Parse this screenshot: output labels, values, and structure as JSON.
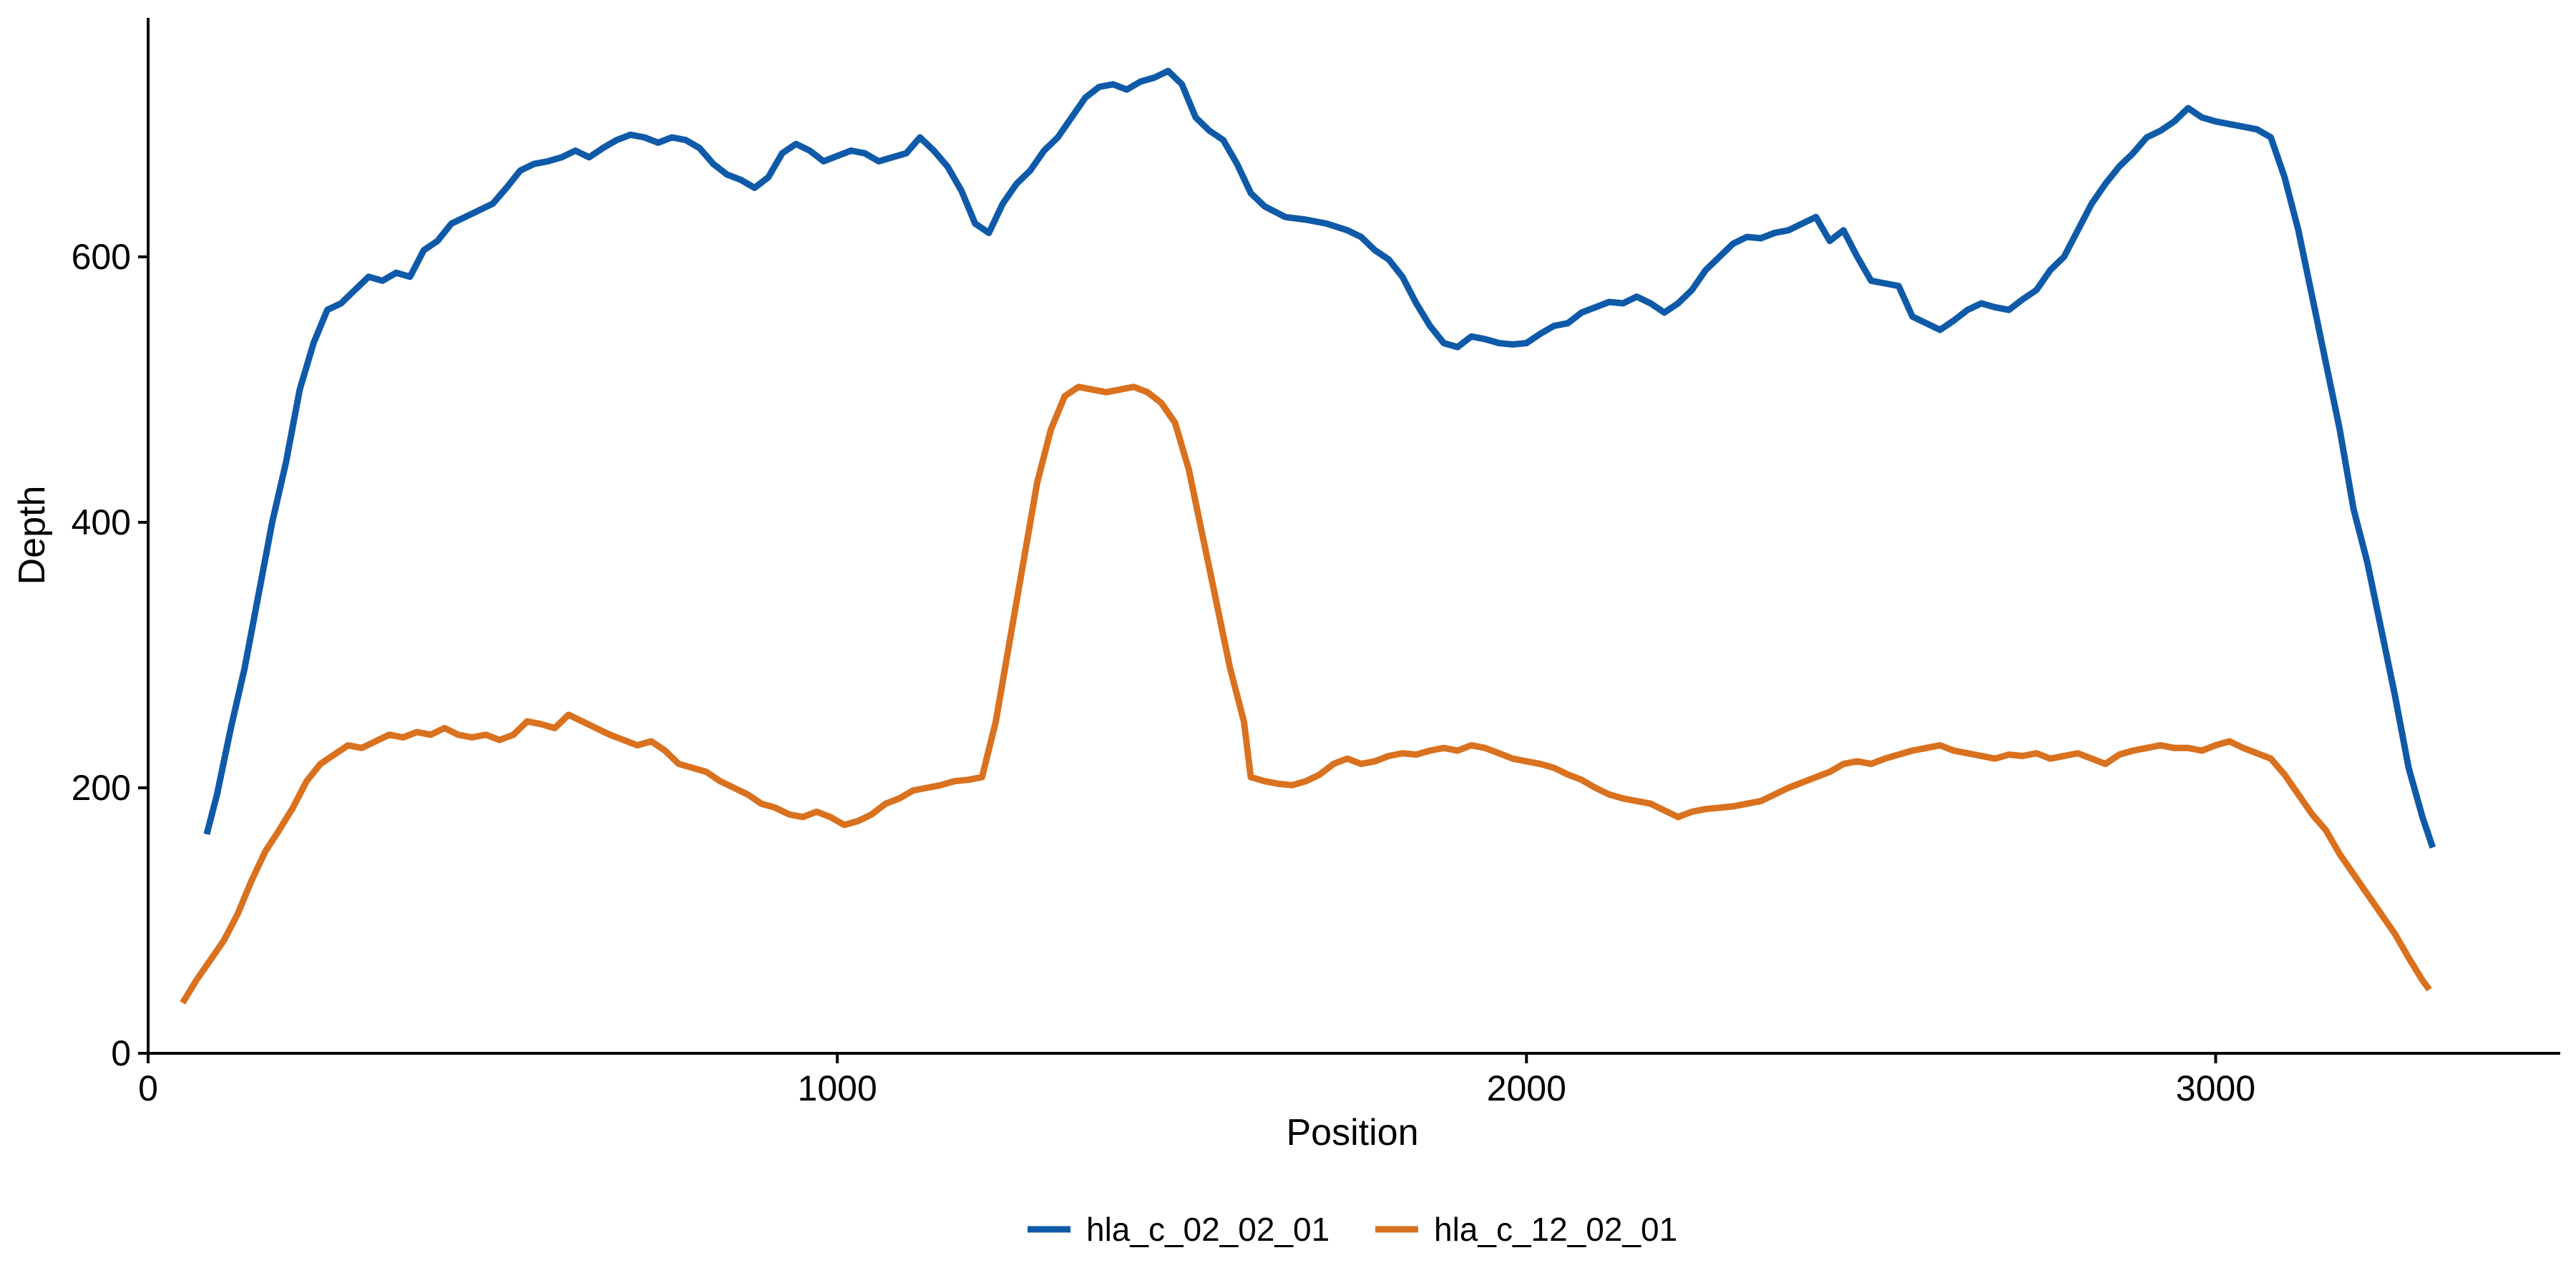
{
  "chart_data": {
    "type": "line",
    "title": "",
    "xlabel": "Position",
    "ylabel": "Depth",
    "xlim": [
      0,
      3500
    ],
    "ylim": [
      0,
      780
    ],
    "x_ticks": [
      0,
      1000,
      2000,
      3000
    ],
    "y_ticks": [
      0,
      200,
      400,
      600
    ],
    "x_tick_labels": [
      "0",
      "1000",
      "2000",
      "3000"
    ],
    "y_tick_labels": [
      "0",
      "200",
      "400",
      "600"
    ],
    "grid": false,
    "legend": {
      "position": "bottom",
      "entries": [
        "hla_c_02_02_01",
        "hla_c_12_02_01"
      ]
    },
    "series": [
      {
        "name": "hla_c_02_02_01",
        "color": "#0f5aa8",
        "points": [
          [
            85,
            165
          ],
          [
            100,
            195
          ],
          [
            120,
            245
          ],
          [
            140,
            290
          ],
          [
            160,
            345
          ],
          [
            180,
            400
          ],
          [
            200,
            445
          ],
          [
            220,
            500
          ],
          [
            240,
            535
          ],
          [
            260,
            560
          ],
          [
            280,
            565
          ],
          [
            300,
            575
          ],
          [
            320,
            585
          ],
          [
            340,
            582
          ],
          [
            360,
            588
          ],
          [
            380,
            585
          ],
          [
            400,
            605
          ],
          [
            420,
            612
          ],
          [
            440,
            625
          ],
          [
            460,
            630
          ],
          [
            480,
            635
          ],
          [
            500,
            640
          ],
          [
            520,
            652
          ],
          [
            540,
            665
          ],
          [
            560,
            670
          ],
          [
            580,
            672
          ],
          [
            600,
            675
          ],
          [
            620,
            680
          ],
          [
            640,
            675
          ],
          [
            660,
            682
          ],
          [
            680,
            688
          ],
          [
            700,
            692
          ],
          [
            720,
            690
          ],
          [
            740,
            686
          ],
          [
            760,
            690
          ],
          [
            780,
            688
          ],
          [
            800,
            682
          ],
          [
            820,
            670
          ],
          [
            840,
            662
          ],
          [
            860,
            658
          ],
          [
            880,
            652
          ],
          [
            900,
            660
          ],
          [
            920,
            678
          ],
          [
            940,
            685
          ],
          [
            960,
            680
          ],
          [
            980,
            672
          ],
          [
            1000,
            676
          ],
          [
            1020,
            680
          ],
          [
            1040,
            678
          ],
          [
            1060,
            672
          ],
          [
            1080,
            675
          ],
          [
            1100,
            678
          ],
          [
            1120,
            690
          ],
          [
            1140,
            680
          ],
          [
            1160,
            668
          ],
          [
            1180,
            650
          ],
          [
            1200,
            625
          ],
          [
            1220,
            618
          ],
          [
            1240,
            640
          ],
          [
            1260,
            655
          ],
          [
            1280,
            665
          ],
          [
            1300,
            680
          ],
          [
            1320,
            690
          ],
          [
            1340,
            705
          ],
          [
            1360,
            720
          ],
          [
            1380,
            728
          ],
          [
            1400,
            730
          ],
          [
            1420,
            726
          ],
          [
            1440,
            732
          ],
          [
            1460,
            735
          ],
          [
            1480,
            740
          ],
          [
            1500,
            730
          ],
          [
            1520,
            705
          ],
          [
            1540,
            695
          ],
          [
            1560,
            688
          ],
          [
            1580,
            670
          ],
          [
            1600,
            648
          ],
          [
            1620,
            638
          ],
          [
            1650,
            630
          ],
          [
            1680,
            628
          ],
          [
            1710,
            625
          ],
          [
            1740,
            620
          ],
          [
            1760,
            615
          ],
          [
            1780,
            605
          ],
          [
            1800,
            598
          ],
          [
            1820,
            585
          ],
          [
            1840,
            565
          ],
          [
            1860,
            548
          ],
          [
            1880,
            535
          ],
          [
            1900,
            532
          ],
          [
            1920,
            540
          ],
          [
            1940,
            538
          ],
          [
            1960,
            535
          ],
          [
            1980,
            534
          ],
          [
            2000,
            535
          ],
          [
            2020,
            542
          ],
          [
            2040,
            548
          ],
          [
            2060,
            550
          ],
          [
            2080,
            558
          ],
          [
            2100,
            562
          ],
          [
            2120,
            566
          ],
          [
            2140,
            565
          ],
          [
            2160,
            570
          ],
          [
            2180,
            565
          ],
          [
            2200,
            558
          ],
          [
            2220,
            565
          ],
          [
            2240,
            575
          ],
          [
            2260,
            590
          ],
          [
            2280,
            600
          ],
          [
            2300,
            610
          ],
          [
            2320,
            615
          ],
          [
            2340,
            614
          ],
          [
            2360,
            618
          ],
          [
            2380,
            620
          ],
          [
            2400,
            625
          ],
          [
            2420,
            630
          ],
          [
            2440,
            612
          ],
          [
            2460,
            620
          ],
          [
            2480,
            600
          ],
          [
            2500,
            582
          ],
          [
            2520,
            580
          ],
          [
            2540,
            578
          ],
          [
            2560,
            555
          ],
          [
            2580,
            550
          ],
          [
            2600,
            545
          ],
          [
            2620,
            552
          ],
          [
            2640,
            560
          ],
          [
            2660,
            565
          ],
          [
            2680,
            562
          ],
          [
            2700,
            560
          ],
          [
            2720,
            568
          ],
          [
            2740,
            575
          ],
          [
            2760,
            590
          ],
          [
            2780,
            600
          ],
          [
            2800,
            620
          ],
          [
            2820,
            640
          ],
          [
            2840,
            655
          ],
          [
            2860,
            668
          ],
          [
            2880,
            678
          ],
          [
            2900,
            690
          ],
          [
            2920,
            695
          ],
          [
            2940,
            702
          ],
          [
            2960,
            712
          ],
          [
            2980,
            705
          ],
          [
            3000,
            702
          ],
          [
            3020,
            700
          ],
          [
            3040,
            698
          ],
          [
            3060,
            696
          ],
          [
            3080,
            690
          ],
          [
            3100,
            660
          ],
          [
            3120,
            620
          ],
          [
            3140,
            570
          ],
          [
            3160,
            520
          ],
          [
            3180,
            470
          ],
          [
            3200,
            410
          ],
          [
            3220,
            370
          ],
          [
            3240,
            320
          ],
          [
            3260,
            270
          ],
          [
            3280,
            215
          ],
          [
            3300,
            178
          ],
          [
            3315,
            155
          ]
        ]
      },
      {
        "name": "hla_c_12_02_01",
        "color": "#d9711f",
        "points": [
          [
            50,
            38
          ],
          [
            70,
            55
          ],
          [
            90,
            70
          ],
          [
            110,
            85
          ],
          [
            130,
            105
          ],
          [
            150,
            130
          ],
          [
            170,
            152
          ],
          [
            190,
            168
          ],
          [
            210,
            185
          ],
          [
            230,
            205
          ],
          [
            250,
            218
          ],
          [
            270,
            225
          ],
          [
            290,
            232
          ],
          [
            310,
            230
          ],
          [
            330,
            235
          ],
          [
            350,
            240
          ],
          [
            370,
            238
          ],
          [
            390,
            242
          ],
          [
            410,
            240
          ],
          [
            430,
            245
          ],
          [
            450,
            240
          ],
          [
            470,
            238
          ],
          [
            490,
            240
          ],
          [
            510,
            236
          ],
          [
            530,
            240
          ],
          [
            550,
            250
          ],
          [
            570,
            248
          ],
          [
            590,
            245
          ],
          [
            610,
            255
          ],
          [
            630,
            250
          ],
          [
            650,
            245
          ],
          [
            670,
            240
          ],
          [
            690,
            236
          ],
          [
            710,
            232
          ],
          [
            730,
            235
          ],
          [
            750,
            228
          ],
          [
            770,
            218
          ],
          [
            790,
            215
          ],
          [
            810,
            212
          ],
          [
            830,
            205
          ],
          [
            850,
            200
          ],
          [
            870,
            195
          ],
          [
            890,
            188
          ],
          [
            910,
            185
          ],
          [
            930,
            180
          ],
          [
            950,
            178
          ],
          [
            970,
            182
          ],
          [
            990,
            178
          ],
          [
            1010,
            172
          ],
          [
            1030,
            175
          ],
          [
            1050,
            180
          ],
          [
            1070,
            188
          ],
          [
            1090,
            192
          ],
          [
            1110,
            198
          ],
          [
            1130,
            200
          ],
          [
            1150,
            202
          ],
          [
            1170,
            205
          ],
          [
            1190,
            206
          ],
          [
            1210,
            208
          ],
          [
            1230,
            250
          ],
          [
            1250,
            310
          ],
          [
            1270,
            370
          ],
          [
            1290,
            430
          ],
          [
            1310,
            470
          ],
          [
            1330,
            495
          ],
          [
            1350,
            502
          ],
          [
            1370,
            500
          ],
          [
            1390,
            498
          ],
          [
            1410,
            500
          ],
          [
            1430,
            502
          ],
          [
            1450,
            498
          ],
          [
            1470,
            490
          ],
          [
            1490,
            475
          ],
          [
            1510,
            440
          ],
          [
            1530,
            390
          ],
          [
            1550,
            340
          ],
          [
            1570,
            290
          ],
          [
            1590,
            250
          ],
          [
            1600,
            208
          ],
          [
            1620,
            205
          ],
          [
            1640,
            203
          ],
          [
            1660,
            202
          ],
          [
            1680,
            205
          ],
          [
            1700,
            210
          ],
          [
            1720,
            218
          ],
          [
            1740,
            222
          ],
          [
            1760,
            218
          ],
          [
            1780,
            220
          ],
          [
            1800,
            224
          ],
          [
            1820,
            226
          ],
          [
            1840,
            225
          ],
          [
            1860,
            228
          ],
          [
            1880,
            230
          ],
          [
            1900,
            228
          ],
          [
            1920,
            232
          ],
          [
            1940,
            230
          ],
          [
            1960,
            226
          ],
          [
            1980,
            222
          ],
          [
            2000,
            220
          ],
          [
            2020,
            218
          ],
          [
            2040,
            215
          ],
          [
            2060,
            210
          ],
          [
            2080,
            206
          ],
          [
            2100,
            200
          ],
          [
            2120,
            195
          ],
          [
            2140,
            192
          ],
          [
            2160,
            190
          ],
          [
            2180,
            188
          ],
          [
            2200,
            183
          ],
          [
            2220,
            178
          ],
          [
            2240,
            182
          ],
          [
            2260,
            184
          ],
          [
            2280,
            185
          ],
          [
            2300,
            186
          ],
          [
            2320,
            188
          ],
          [
            2340,
            190
          ],
          [
            2360,
            195
          ],
          [
            2380,
            200
          ],
          [
            2400,
            204
          ],
          [
            2420,
            208
          ],
          [
            2440,
            212
          ],
          [
            2460,
            218
          ],
          [
            2480,
            220
          ],
          [
            2500,
            218
          ],
          [
            2520,
            222
          ],
          [
            2540,
            225
          ],
          [
            2560,
            228
          ],
          [
            2580,
            230
          ],
          [
            2600,
            232
          ],
          [
            2620,
            228
          ],
          [
            2640,
            226
          ],
          [
            2660,
            224
          ],
          [
            2680,
            222
          ],
          [
            2700,
            225
          ],
          [
            2720,
            224
          ],
          [
            2740,
            226
          ],
          [
            2760,
            222
          ],
          [
            2780,
            224
          ],
          [
            2800,
            226
          ],
          [
            2820,
            222
          ],
          [
            2840,
            218
          ],
          [
            2860,
            225
          ],
          [
            2880,
            228
          ],
          [
            2900,
            230
          ],
          [
            2920,
            232
          ],
          [
            2940,
            230
          ],
          [
            2960,
            230
          ],
          [
            2980,
            228
          ],
          [
            3000,
            232
          ],
          [
            3020,
            235
          ],
          [
            3040,
            230
          ],
          [
            3060,
            226
          ],
          [
            3080,
            222
          ],
          [
            3100,
            210
          ],
          [
            3120,
            195
          ],
          [
            3140,
            180
          ],
          [
            3160,
            168
          ],
          [
            3180,
            150
          ],
          [
            3200,
            135
          ],
          [
            3220,
            120
          ],
          [
            3240,
            105
          ],
          [
            3260,
            90
          ],
          [
            3280,
            72
          ],
          [
            3300,
            55
          ],
          [
            3310,
            48
          ]
        ]
      }
    ]
  }
}
